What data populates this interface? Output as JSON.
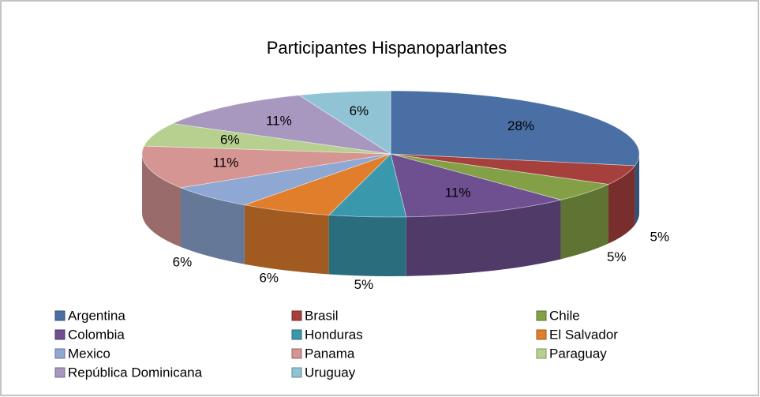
{
  "chart_data": {
    "type": "pie3d",
    "title": "Participantes Hispanoparlantes",
    "categories": [
      "Argentina",
      "Brasil",
      "Chile",
      "Colombia",
      "Honduras",
      "El Salvador",
      "Mexico",
      "Panama",
      "Paraguay",
      "República Dominicana",
      "Uruguay"
    ],
    "values": [
      28,
      5,
      5,
      11,
      5,
      6,
      6,
      11,
      6,
      11,
      6
    ],
    "value_labels": [
      "28%",
      "5%",
      "5%",
      "11%",
      "5%",
      "6%",
      "6%",
      "11%",
      "6%",
      "11%",
      "6%"
    ],
    "colors": [
      "#4a6fa5",
      "#a5403d",
      "#84a047",
      "#6e5091",
      "#3a98ad",
      "#e07e2c",
      "#8ea7d3",
      "#d59593",
      "#b7d08f",
      "#a898c0",
      "#90c4d4"
    ],
    "legend": "bottom"
  }
}
